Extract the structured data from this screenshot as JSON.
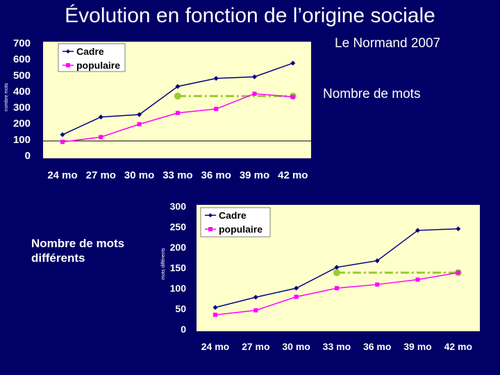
{
  "slide": {
    "title": "Évolution en fonction de l’origine sociale",
    "source": "Le Normand 2007",
    "caption_top": "Nombre de mots",
    "caption_bottom": "Nombre de mots\ndifférents"
  },
  "colors": {
    "background": "#000066",
    "plot_area": "#ffffcc",
    "cadre": "#000080",
    "populaire": "#ff00ff",
    "reference": "#99cc33"
  },
  "chart_data": [
    {
      "type": "line",
      "ylabel": "nombre mots",
      "xlabel": "",
      "categories": [
        "24 mo",
        "27 mo",
        "30 mo",
        "33 mo",
        "36 mo",
        "39 mo",
        "42 mo"
      ],
      "ylim": [
        0,
        700
      ],
      "yticks": [
        0,
        100,
        200,
        300,
        400,
        500,
        600,
        700
      ],
      "series": [
        {
          "name": "Cadre",
          "values": [
            130,
            240,
            255,
            430,
            480,
            490,
            575
          ]
        },
        {
          "name": "populaire",
          "values": [
            85,
            115,
            195,
            265,
            290,
            385,
            365
          ]
        }
      ],
      "reference_line": {
        "value": 370,
        "from": "33 mo",
        "to": "42 mo"
      },
      "legend": "top-left",
      "grid": false
    },
    {
      "type": "line",
      "ylabel": "mots différents",
      "xlabel": "",
      "categories": [
        "24 mo",
        "27 mo",
        "30 mo",
        "33 mo",
        "36 mo",
        "39 mo",
        "42 mo"
      ],
      "ylim": [
        0,
        300
      ],
      "yticks": [
        0,
        50,
        100,
        150,
        200,
        250,
        300
      ],
      "series": [
        {
          "name": "Cadre",
          "values": [
            53,
            78,
            100,
            151,
            167,
            241,
            245
          ]
        },
        {
          "name": "populaire",
          "values": [
            35,
            46,
            79,
            100,
            109,
            121,
            138
          ]
        }
      ],
      "reference_line": {
        "value": 138,
        "from": "33 mo",
        "to": "42 mo"
      },
      "legend": "top-left",
      "grid": false
    }
  ]
}
